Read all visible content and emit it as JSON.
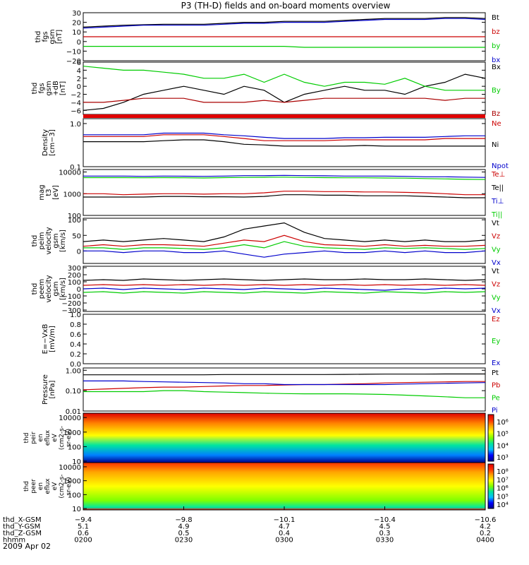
{
  "title": "P3 (TH-D) fields and on-board moments overview",
  "date": "2009 Apr 02",
  "chart_data": {
    "type": "line",
    "panels": [
      {
        "ylabel": [
          "thd",
          "fgs",
          "gsm",
          "[nT]"
        ],
        "ylim": [
          -20,
          30
        ],
        "yticks": [
          "30",
          "20",
          "10",
          "0",
          "−10",
          "−20"
        ],
        "series": [
          {
            "name": "Bt",
            "color": "#000000",
            "values": [
              15,
              16,
              17,
              17.5,
              18,
              18,
              18,
              19,
              20,
              20,
              21,
              21,
              21,
              22,
              23,
              24,
              24,
              24,
              25,
              25,
              24
            ]
          },
          {
            "name": "bz",
            "color": "#cc0000",
            "values": [
              5,
              5,
              5,
              5,
              5,
              5,
              5,
              5,
              5,
              5,
              5,
              5,
              5,
              5,
              5,
              5,
              5,
              5,
              5,
              5,
              5
            ]
          },
          {
            "name": "by",
            "color": "#00cc00",
            "values": [
              -5,
              -5,
              -5,
              -5,
              -5,
              -5,
              -5,
              -5,
              -5,
              -5,
              -5,
              -6,
              -6,
              -6,
              -6,
              -6,
              -6,
              -6,
              -6,
              -6,
              -6
            ]
          },
          {
            "name": "bx",
            "color": "#0000cc",
            "values": [
              14,
              15,
              16,
              17,
              17,
              17,
              17,
              18,
              19,
              19,
              20,
              20,
              20,
              21,
              22,
              23,
              23,
              23,
              24,
              24,
              23
            ]
          }
        ]
      },
      {
        "ylabel": [
          "thd",
          "fgs",
          "gsm",
          "+dB",
          "[nT]"
        ],
        "ylim": [
          -7,
          6
        ],
        "yticks": [
          "6",
          "4",
          "2",
          "0",
          "−2",
          "−4",
          "−6"
        ],
        "series": [
          {
            "name": "Bx",
            "color": "#000000",
            "values": [
              -6,
              -5.5,
              -4,
              -2,
              -1,
              0,
              -1,
              -2,
              0,
              -1,
              -4,
              -2,
              -1,
              0,
              -1,
              -1,
              -2,
              0,
              1,
              3,
              2
            ]
          },
          {
            "name": "By",
            "color": "#00cc00",
            "values": [
              5,
              4.5,
              4,
              4,
              3.5,
              3,
              2,
              2,
              3,
              1,
              3,
              1,
              0,
              1,
              1,
              0.5,
              2,
              0,
              -1,
              -1,
              -1
            ]
          },
          {
            "name": "Bz",
            "color": "#aa0000",
            "values": [
              -4,
              -4,
              -3.5,
              -3,
              -3,
              -3,
              -4,
              -4,
              -4,
              -3.5,
              -4,
              -3.5,
              -3,
              -3,
              -3,
              -3,
              -3,
              -3,
              -3.5,
              -3,
              -3
            ]
          }
        ]
      },
      {
        "ylabel": [
          "Density",
          "[cm−3]"
        ],
        "ylim": [
          0.1,
          1.3
        ],
        "scale": "log",
        "yticks": [
          "1.0",
          "0.1"
        ],
        "series": [
          {
            "name": "Ne",
            "color": "#cc0000",
            "values": [
              0.5,
              0.5,
              0.5,
              0.5,
              0.55,
              0.55,
              0.55,
              0.5,
              0.45,
              0.4,
              0.4,
              0.4,
              0.4,
              0.42,
              0.42,
              0.42,
              0.42,
              0.42,
              0.45,
              0.45,
              0.45
            ]
          },
          {
            "name": "Ni",
            "color": "#000000",
            "values": [
              0.38,
              0.38,
              0.38,
              0.38,
              0.4,
              0.42,
              0.42,
              0.38,
              0.33,
              0.32,
              0.3,
              0.3,
              0.3,
              0.3,
              0.31,
              0.3,
              0.3,
              0.3,
              0.3,
              0.3,
              0.3
            ]
          },
          {
            "name": "Npot",
            "color": "#0000cc",
            "values": [
              0.55,
              0.55,
              0.55,
              0.55,
              0.6,
              0.6,
              0.6,
              0.55,
              0.52,
              0.48,
              0.45,
              0.45,
              0.45,
              0.47,
              0.47,
              0.48,
              0.48,
              0.48,
              0.5,
              0.52,
              0.52
            ]
          }
        ]
      },
      {
        "ylabel": [
          "mag",
          "t3",
          "[eV]"
        ],
        "ylim": [
          100,
          13000
        ],
        "scale": "log",
        "yticks": [
          "10000",
          "1000",
          "100"
        ],
        "series": [
          {
            "name": "Te⊥",
            "color": "#cc0000",
            "values": [
              1000,
              1000,
              900,
              950,
              1000,
              1000,
              950,
              1000,
              1000,
              1100,
              1300,
              1300,
              1250,
              1250,
              1200,
              1200,
              1150,
              1100,
              1000,
              900,
              900
            ]
          },
          {
            "name": "Te||",
            "color": "#000000",
            "values": [
              700,
              700,
              700,
              700,
              750,
              750,
              720,
              720,
              700,
              750,
              900,
              900,
              850,
              850,
              800,
              800,
              800,
              750,
              700,
              650,
              650
            ]
          },
          {
            "name": "Ti⊥",
            "color": "#0000cc",
            "values": [
              6500,
              6500,
              6500,
              6300,
              6500,
              6400,
              6300,
              6500,
              6800,
              6800,
              7000,
              6800,
              6700,
              6500,
              6500,
              6500,
              6300,
              6000,
              6000,
              5800,
              5600
            ]
          },
          {
            "name": "Ti||",
            "color": "#00cc00",
            "values": [
              5500,
              5500,
              5500,
              5400,
              5500,
              5400,
              5300,
              5500,
              5600,
              5700,
              5800,
              5600,
              5500,
              5400,
              5400,
              5300,
              5200,
              5000,
              4800,
              4600,
              4500
            ]
          }
        ]
      },
      {
        "ylabel": [
          "thd",
          "peim",
          "velocity",
          "gsm",
          "[km/s]"
        ],
        "ylim": [
          -40,
          105
        ],
        "yticks": [
          "100",
          "50",
          "0"
        ],
        "series": [
          {
            "name": "Vt",
            "color": "#000000",
            "values": [
              30,
              35,
              30,
              35,
              40,
              35,
              30,
              45,
              70,
              80,
              90,
              60,
              40,
              35,
              30,
              35,
              30,
              35,
              30,
              30,
              35
            ]
          },
          {
            "name": "Vz",
            "color": "#cc0000",
            "values": [
              15,
              20,
              15,
              20,
              20,
              18,
              15,
              25,
              35,
              30,
              50,
              30,
              20,
              18,
              15,
              20,
              15,
              18,
              15,
              15,
              18
            ]
          },
          {
            "name": "Vy",
            "color": "#00cc00",
            "values": [
              10,
              10,
              5,
              10,
              10,
              8,
              5,
              10,
              20,
              10,
              30,
              15,
              10,
              8,
              5,
              10,
              8,
              10,
              8,
              5,
              8
            ]
          },
          {
            "name": "Vx",
            "color": "#0000cc",
            "values": [
              0,
              0,
              -5,
              0,
              0,
              -5,
              -5,
              0,
              -10,
              -20,
              -10,
              -5,
              0,
              -5,
              -5,
              0,
              -5,
              0,
              -5,
              -5,
              0
            ]
          }
        ]
      },
      {
        "ylabel": [
          "thd",
          "peem",
          "velocity",
          "gsm",
          "[km/s]"
        ],
        "ylim": [
          -320,
          320
        ],
        "yticks": [
          "300",
          "200",
          "100",
          "0",
          "−100",
          "−200",
          "−300"
        ],
        "series": [
          {
            "name": "Vt",
            "color": "#000000",
            "values": [
              120,
              130,
              120,
              140,
              130,
              120,
              130,
              140,
              130,
              120,
              130,
              140,
              130,
              130,
              140,
              130,
              130,
              140,
              130,
              120,
              130
            ]
          },
          {
            "name": "Vz",
            "color": "#cc0000",
            "values": [
              50,
              60,
              50,
              60,
              50,
              60,
              50,
              60,
              50,
              60,
              50,
              60,
              50,
              60,
              50,
              60,
              50,
              60,
              50,
              60,
              50
            ]
          },
          {
            "name": "Vy",
            "color": "#00cc00",
            "values": [
              -50,
              -40,
              -60,
              -40,
              -50,
              -60,
              -40,
              -50,
              -60,
              -40,
              -50,
              -60,
              -40,
              -50,
              -60,
              -40,
              -50,
              -60,
              -40,
              -50,
              -40
            ]
          },
          {
            "name": "Vx",
            "color": "#0000cc",
            "values": [
              0,
              10,
              -10,
              10,
              0,
              -10,
              10,
              0,
              -10,
              10,
              0,
              -10,
              10,
              0,
              -10,
              -20,
              0,
              -10,
              10,
              0,
              10
            ]
          }
        ]
      },
      {
        "ylabel": [
          "E=−VxB",
          "[mV/m]"
        ],
        "ylim": [
          0,
          1.0
        ],
        "yticks": [
          "1.0",
          "0.8",
          "0.6",
          "0.4",
          "0.2",
          "0.0"
        ],
        "series": [
          {
            "name": "Ez",
            "color": "#cc0000",
            "values": []
          },
          {
            "name": "Ey",
            "color": "#00cc00",
            "values": []
          },
          {
            "name": "Ex",
            "color": "#0000cc",
            "values": []
          }
        ]
      },
      {
        "ylabel": [
          "Pressure",
          "[nPa]"
        ],
        "ylim": [
          0.01,
          1.3
        ],
        "scale": "log",
        "yticks": [
          "1.00",
          "0.10",
          "0.01"
        ],
        "series": [
          {
            "name": "Pt",
            "color": "#000000",
            "values": [
              0.6,
              0.6,
              0.6,
              0.6,
              0.6,
              0.6,
              0.6,
              0.62,
              0.62,
              0.62,
              0.62,
              0.62,
              0.62,
              0.63,
              0.64,
              0.65,
              0.65,
              0.65,
              0.66,
              0.66,
              0.66
            ]
          },
          {
            "name": "Pb",
            "color": "#cc0000",
            "values": [
              0.11,
              0.12,
              0.13,
              0.14,
              0.15,
              0.15,
              0.16,
              0.17,
              0.18,
              0.18,
              0.19,
              0.2,
              0.2,
              0.21,
              0.22,
              0.24,
              0.25,
              0.26,
              0.27,
              0.28,
              0.28
            ]
          },
          {
            "name": "Pe",
            "color": "#00cc00",
            "values": [
              0.09,
              0.09,
              0.09,
              0.09,
              0.1,
              0.1,
              0.09,
              0.085,
              0.08,
              0.075,
              0.072,
              0.07,
              0.07,
              0.07,
              0.068,
              0.065,
              0.06,
              0.055,
              0.05,
              0.045,
              0.045
            ]
          },
          {
            "name": "Pi",
            "color": "#0000cc",
            "values": [
              0.3,
              0.3,
              0.3,
              0.28,
              0.27,
              0.26,
              0.25,
              0.24,
              0.22,
              0.22,
              0.2,
              0.2,
              0.2,
              0.2,
              0.2,
              0.2,
              0.21,
              0.22,
              0.23,
              0.24,
              0.25
            ]
          }
        ]
      }
    ],
    "spectrograms": [
      {
        "ylabel": [
          "thd",
          "peir",
          "en",
          "eflux",
          "eV",
          "(cm2-s-",
          "sr-eV)"
        ],
        "ylim": [
          8,
          20000
        ],
        "scale": "log",
        "yticks": [
          "10000",
          "1000",
          "100",
          "10"
        ],
        "colorbar_ticks": [
          "10⁶",
          "10⁵",
          "10⁴",
          "10³"
        ]
      },
      {
        "ylabel": [
          "thd",
          "peer",
          "en",
          "eflux",
          "eV",
          "(cm2-s-",
          "sr-eV)"
        ],
        "ylim": [
          8,
          20000
        ],
        "scale": "log",
        "yticks": [
          "10000",
          "1000",
          "100",
          "10"
        ],
        "colorbar_ticks": [
          "10⁸",
          "10⁷",
          "10⁶",
          "10⁵",
          "10⁴"
        ]
      }
    ],
    "xaxis": {
      "labels": [
        "thd_X-GSM",
        "thd_Y-GSM",
        "thd_Z-GSM",
        "hhmm"
      ],
      "rows": [
        [
          "−9.4",
          "−9.8",
          "−10.1",
          "−10.4",
          "−10.6"
        ],
        [
          "5.1",
          "4.9",
          "4.7",
          "4.5",
          "4.2"
        ],
        [
          "0.6",
          "0.5",
          "0.4",
          "0.3",
          "0.2"
        ],
        [
          "0200",
          "0230",
          "0300",
          "0330",
          "0400"
        ]
      ]
    }
  }
}
